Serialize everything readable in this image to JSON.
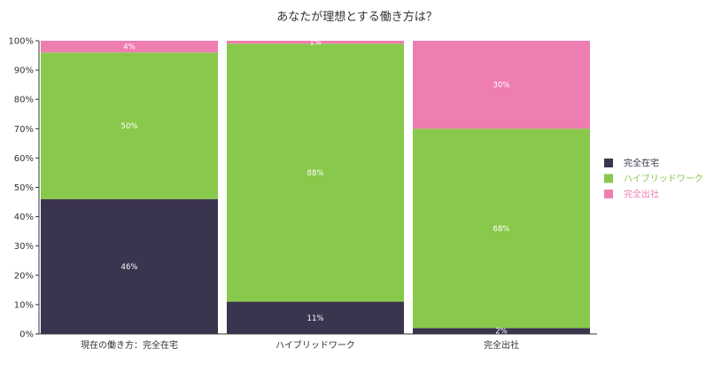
{
  "chart_data": {
    "type": "bar",
    "stacked": true,
    "orientation": "vertical",
    "title": "あなたが理想とする働き方は？",
    "xlabel": "",
    "ylabel": "",
    "ylim": [
      0,
      100
    ],
    "yticks": [
      0,
      10,
      20,
      30,
      40,
      50,
      60,
      70,
      80,
      90,
      100
    ],
    "ytick_labels": [
      "0%",
      "10%",
      "20%",
      "30%",
      "40%",
      "50%",
      "60%",
      "70%",
      "80%",
      "90%",
      "100%"
    ],
    "categories": [
      "現在の働き方：完全在宅",
      "ハイブリッドワーク",
      "完全出社"
    ],
    "series": [
      {
        "name": "完全在宅",
        "color": "#3b344f",
        "values": [
          46,
          11,
          2
        ],
        "labels": [
          "46%",
          "11%",
          "2%"
        ]
      },
      {
        "name": "ハイブリッドワーク",
        "color": "#88c94b",
        "values": [
          50,
          88,
          68
        ],
        "labels": [
          "50%",
          "88%",
          "68%"
        ]
      },
      {
        "name": "完全出社",
        "color": "#ee7db1",
        "values": [
          4,
          1,
          30
        ],
        "labels": [
          "4%",
          "1%",
          "30%"
        ]
      }
    ],
    "legend": {
      "position": "right"
    },
    "grid": false
  }
}
